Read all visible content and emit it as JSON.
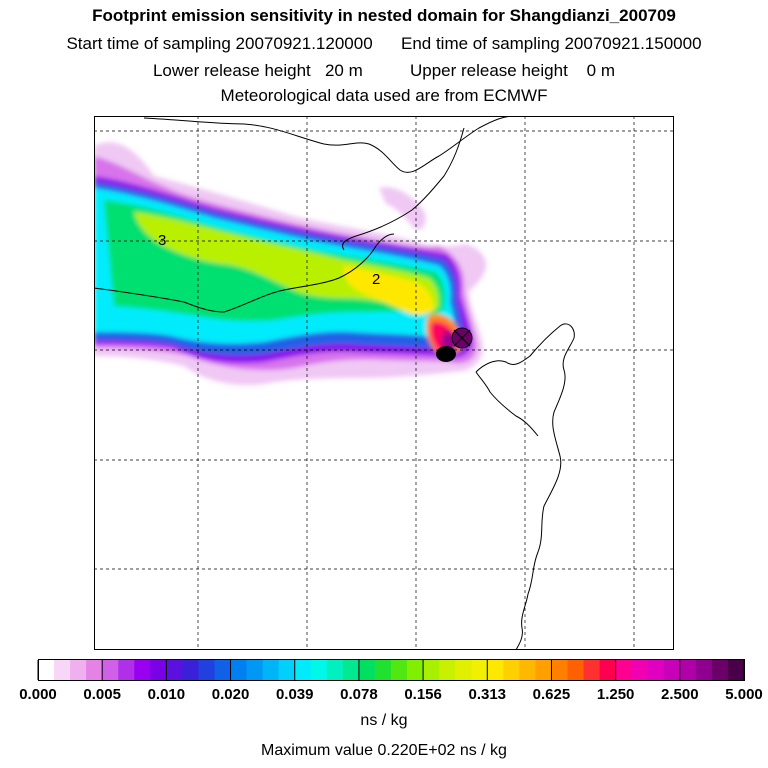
{
  "header": {
    "title": "Footprint emission sensitivity in nested domain for Shangdianzi_200709",
    "sampling_line": "Start time of sampling 20070921.120000      End time of sampling 20070921.150000",
    "release_line": "Lower release height   20 m          Upper release height    0 m",
    "met_line": "Meteorological data used are from ECMWF"
  },
  "map": {
    "contour_labels": [
      "3",
      "2"
    ],
    "receptor_marker": "receptor-site",
    "colors": {
      "frame": "#000000",
      "coastline": "#000000",
      "grid": "#000000"
    }
  },
  "legend": {
    "tick_labels": [
      "0.000",
      "0.005",
      "0.010",
      "0.020",
      "0.039",
      "0.078",
      "0.156",
      "0.313",
      "0.625",
      "1.250",
      "2.500",
      "5.000"
    ],
    "colors": [
      "#ffffff",
      "#f7d6f7",
      "#f0b0f0",
      "#e582e6",
      "#d060e8",
      "#b030ea",
      "#9a00f0",
      "#7a00e8",
      "#5a10e0",
      "#3a20d8",
      "#2040e0",
      "#1060e8",
      "#0080f0",
      "#0098f4",
      "#00b4f8",
      "#00d0fa",
      "#00ecfc",
      "#00f8e8",
      "#00f0c0",
      "#00e890",
      "#00e060",
      "#20e030",
      "#50e810",
      "#80f000",
      "#a8f000",
      "#c8f000",
      "#e0f000",
      "#f0f000",
      "#ffe800",
      "#ffd000",
      "#ffb800",
      "#ffa000",
      "#ff8000",
      "#ff6000",
      "#ff3030",
      "#ff0050",
      "#ff0090",
      "#f000b0",
      "#e000c0",
      "#c800b8",
      "#b000a8",
      "#900090",
      "#6a0068",
      "#4a0048"
    ],
    "units": "ns / kg",
    "maximum": "Maximum value  0.220E+02 ns / kg"
  }
}
